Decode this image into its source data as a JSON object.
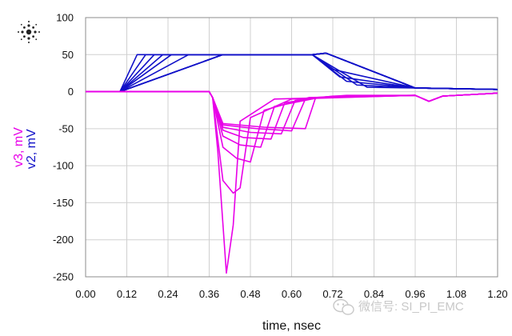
{
  "chart_data": {
    "type": "line",
    "xlabel": "time, nsec",
    "ylabels": [
      {
        "text": "v2, mV",
        "color": "#1010c8"
      },
      {
        "text": "v3, mV",
        "color": "#e800e8"
      }
    ],
    "xlim": [
      0.0,
      1.2
    ],
    "ylim": [
      -250,
      100
    ],
    "x_ticks": [
      "0.00",
      "0.12",
      "0.24",
      "0.36",
      "0.48",
      "0.60",
      "0.72",
      "0.84",
      "0.96",
      "1.08",
      "1.20"
    ],
    "y_ticks": [
      "100",
      "50",
      "0",
      "-50",
      "-100",
      "-150",
      "-200",
      "-250"
    ],
    "grid": true,
    "colors": {
      "v2": "#1010c8",
      "v3": "#e800e8",
      "grid": "#d0d0d0",
      "frame": "#8c8c8c"
    },
    "series_groups": [
      {
        "signal": "v2",
        "series": [
          {
            "x": [
              0,
              0.1,
              0.15,
              0.66,
              0.7,
              0.96,
              1.2
            ],
            "y": [
              0,
              0,
              50,
              50,
              52,
              5,
              3
            ]
          },
          {
            "x": [
              0,
              0.1,
              0.175,
              0.66,
              0.7,
              0.96,
              1.2
            ],
            "y": [
              0,
              0,
              50,
              50,
              52,
              5,
              3
            ]
          },
          {
            "x": [
              0,
              0.1,
              0.2,
              0.66,
              0.7,
              0.96,
              1.2
            ],
            "y": [
              0,
              0,
              50,
              50,
              52,
              5,
              3
            ]
          },
          {
            "x": [
              0,
              0.1,
              0.225,
              0.66,
              0.7,
              0.96,
              1.2
            ],
            "y": [
              0,
              0,
              50,
              50,
              52,
              5,
              3
            ]
          },
          {
            "x": [
              0,
              0.1,
              0.25,
              0.66,
              0.7,
              0.96,
              1.2
            ],
            "y": [
              0,
              0,
              50,
              50,
              52,
              5,
              3
            ]
          },
          {
            "x": [
              0,
              0.1,
              0.3,
              0.66,
              0.7,
              0.96,
              1.2
            ],
            "y": [
              0,
              0,
              50,
              50,
              52,
              5,
              3
            ]
          },
          {
            "x": [
              0,
              0.1,
              0.4,
              0.66,
              0.72,
              0.96,
              1.2
            ],
            "y": [
              0,
              0,
              50,
              50,
              30,
              5,
              3
            ]
          },
          {
            "x": [
              0,
              0.1,
              0.4,
              0.66,
              0.74,
              0.96,
              1.2
            ],
            "y": [
              0,
              0,
              50,
              50,
              20,
              5,
              3
            ]
          },
          {
            "x": [
              0,
              0.1,
              0.4,
              0.66,
              0.76,
              0.96,
              1.2
            ],
            "y": [
              0,
              0,
              50,
              50,
              14,
              5,
              3
            ]
          },
          {
            "x": [
              0,
              0.1,
              0.4,
              0.66,
              0.79,
              0.96,
              1.2
            ],
            "y": [
              0,
              0,
              50,
              50,
              9,
              5,
              3
            ]
          },
          {
            "x": [
              0,
              0.1,
              0.4,
              0.66,
              0.82,
              0.96,
              1.2
            ],
            "y": [
              0,
              0,
              50,
              50,
              6,
              5,
              3
            ]
          }
        ]
      },
      {
        "signal": "v3",
        "series": [
          {
            "x": [
              0,
              0.36,
              0.37,
              0.385,
              0.41,
              0.43,
              0.45,
              0.55,
              0.96,
              1.0,
              1.04,
              1.2
            ],
            "y": [
              0,
              0,
              -8,
              -80,
              -245,
              -180,
              -40,
              -10,
              -5,
              -13,
              -6,
              -2
            ]
          },
          {
            "x": [
              0,
              0.36,
              0.37,
              0.4,
              0.43,
              0.45,
              0.48,
              0.6,
              0.96,
              1.0,
              1.04,
              1.2
            ],
            "y": [
              0,
              0,
              -8,
              -120,
              -137,
              -130,
              -35,
              -10,
              -5,
              -13,
              -6,
              -2
            ]
          },
          {
            "x": [
              0,
              0.36,
              0.37,
              0.4,
              0.44,
              0.48,
              0.52,
              0.65,
              0.96,
              1.0,
              1.04,
              1.2
            ],
            "y": [
              0,
              0,
              -8,
              -75,
              -90,
              -95,
              -25,
              -8,
              -5,
              -13,
              -6,
              -2
            ]
          },
          {
            "x": [
              0,
              0.36,
              0.37,
              0.4,
              0.45,
              0.51,
              0.55,
              0.68,
              0.96,
              1.0,
              1.04,
              1.2
            ],
            "y": [
              0,
              0,
              -8,
              -60,
              -72,
              -75,
              -20,
              -8,
              -5,
              -13,
              -6,
              -2
            ]
          },
          {
            "x": [
              0,
              0.36,
              0.37,
              0.4,
              0.46,
              0.54,
              0.58,
              0.7,
              0.96,
              1.0,
              1.04,
              1.2
            ],
            "y": [
              0,
              0,
              -8,
              -52,
              -62,
              -64,
              -15,
              -7,
              -5,
              -13,
              -6,
              -2
            ]
          },
          {
            "x": [
              0,
              0.36,
              0.37,
              0.4,
              0.48,
              0.57,
              0.61,
              0.72,
              0.96,
              1.0,
              1.04,
              1.2
            ],
            "y": [
              0,
              0,
              -8,
              -48,
              -55,
              -57,
              -12,
              -6,
              -5,
              -13,
              -6,
              -2
            ]
          },
          {
            "x": [
              0,
              0.36,
              0.37,
              0.4,
              0.5,
              0.6,
              0.64,
              0.74,
              0.96,
              1.0,
              1.04,
              1.2
            ],
            "y": [
              0,
              0,
              -8,
              -45,
              -50,
              -53,
              -10,
              -6,
              -5,
              -13,
              -6,
              -2
            ]
          },
          {
            "x": [
              0,
              0.36,
              0.37,
              0.4,
              0.52,
              0.64,
              0.67,
              0.76,
              0.96,
              1.0,
              1.04,
              1.2
            ],
            "y": [
              0,
              0,
              -8,
              -43,
              -48,
              -50,
              -8,
              -5,
              -5,
              -13,
              -6,
              -2
            ]
          }
        ]
      }
    ]
  },
  "logo": {
    "name": "company-logo-icon"
  },
  "watermark": {
    "text": "微信号: SI_PI_EMC",
    "icon": "wechat-icon"
  }
}
